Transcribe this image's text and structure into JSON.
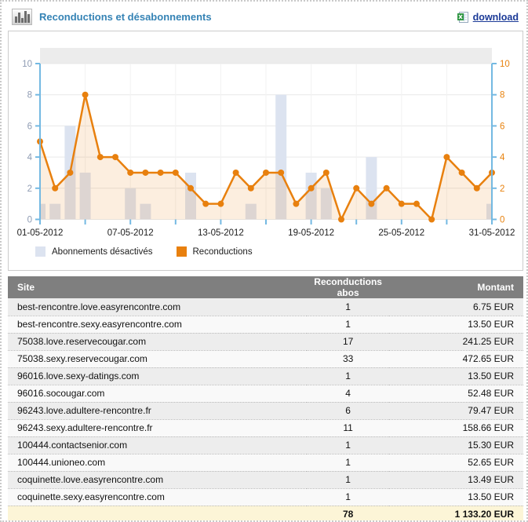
{
  "header": {
    "title": "Reconductions et désabonnements",
    "download_label": "download"
  },
  "chart_data": {
    "type": "bar+line",
    "title": "Reconductions et désabonnements",
    "x": [
      1,
      2,
      3,
      4,
      5,
      6,
      7,
      8,
      9,
      10,
      11,
      12,
      13,
      14,
      15,
      16,
      17,
      18,
      19,
      20,
      21,
      22,
      23,
      24,
      25,
      26,
      27,
      28,
      29,
      30,
      31
    ],
    "x_labeled_days": [
      1,
      7,
      13,
      19,
      25,
      31
    ],
    "x_tick_days": [
      1,
      4,
      7,
      10,
      13,
      16,
      19,
      22,
      25,
      28,
      31
    ],
    "x_tick_labels": [
      "01-05-2012",
      "07-05-2012",
      "13-05-2012",
      "19-05-2012",
      "25-05-2012",
      "31-05-2012"
    ],
    "ylim": [
      0,
      10
    ],
    "yticks": [
      0,
      2,
      4,
      6,
      8,
      10
    ],
    "grid": true,
    "legend_position": "bottom-left",
    "series": [
      {
        "name": "Abonnements désactivés",
        "type": "bar",
        "color": "#dce3f0",
        "values": [
          1,
          1,
          6,
          3,
          0,
          0,
          2,
          1,
          0,
          0,
          3,
          0,
          0,
          0,
          1,
          0,
          8,
          0,
          3,
          2,
          0,
          0,
          4,
          0,
          0,
          0,
          0,
          0,
          0,
          0,
          1
        ]
      },
      {
        "name": "Reconductions",
        "type": "line",
        "color": "#e8800e",
        "area_fill": "rgba(232,126,10,0.13)",
        "values": [
          5,
          2,
          3,
          8,
          4,
          4,
          3,
          3,
          3,
          3,
          2,
          1,
          1,
          3,
          2,
          3,
          3,
          1,
          2,
          3,
          0,
          2,
          1,
          2,
          1,
          1,
          0,
          4,
          3,
          2,
          3
        ]
      }
    ]
  },
  "table": {
    "columns": [
      "Site",
      "Reconductions abos",
      "Montant"
    ],
    "rows": [
      [
        "best-rencontre.love.easyrencontre.com",
        "1",
        "6.75 EUR"
      ],
      [
        "best-rencontre.sexy.easyrencontre.com",
        "1",
        "13.50 EUR"
      ],
      [
        "75038.love.reservecougar.com",
        "17",
        "241.25 EUR"
      ],
      [
        "75038.sexy.reservecougar.com",
        "33",
        "472.65 EUR"
      ],
      [
        "96016.love.sexy-datings.com",
        "1",
        "13.50 EUR"
      ],
      [
        "96016.socougar.com",
        "4",
        "52.48 EUR"
      ],
      [
        "96243.love.adultere-rencontre.fr",
        "6",
        "79.47 EUR"
      ],
      [
        "96243.sexy.adultere-rencontre.fr",
        "11",
        "158.66 EUR"
      ],
      [
        "100444.contactsenior.com",
        "1",
        "15.30 EUR"
      ],
      [
        "100444.unioneo.com",
        "1",
        "52.65 EUR"
      ],
      [
        "coquinette.love.easyrencontre.com",
        "1",
        "13.49 EUR"
      ],
      [
        "coquinette.sexy.easyrencontre.com",
        "1",
        "13.50 EUR"
      ]
    ],
    "total": {
      "abos": "78",
      "montant": "1 133.20 EUR"
    }
  },
  "colors": {
    "title_blue": "#3583b5",
    "link_navy": "#1b3a97",
    "orange": "#e8800e",
    "lavender_bar": "#dce3f0",
    "axis_blue": "#74b9e2",
    "left_axis_label": "#8e9bb3",
    "right_axis_label": "#e8820e",
    "grid_line": "#e9e9e9",
    "top_strip": "#ececec",
    "table_header_bg": "#7f7f7f",
    "row_odd": "#ededed",
    "row_even": "#f9f9f9",
    "footer_bg": "#fcf5d7"
  }
}
